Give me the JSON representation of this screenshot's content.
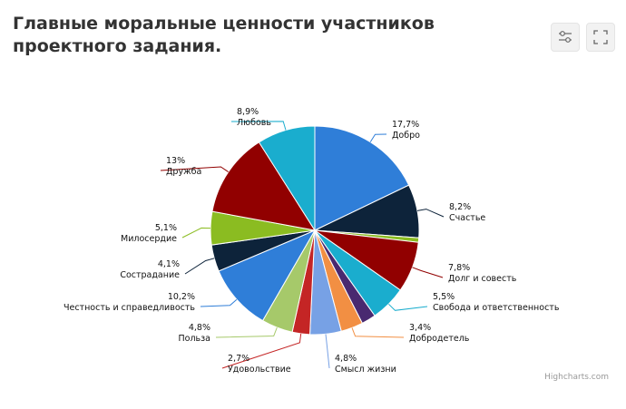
{
  "title": "Главные моральные ценности участников проектного задания.",
  "credits": "Highcharts.com",
  "toolbar": {
    "filter_icon": "sliders-icon",
    "expand_icon": "fullscreen-icon"
  },
  "chart_data": {
    "type": "pie",
    "title": "Главные моральные ценности участников проектного задания.",
    "start_angle_deg": 0,
    "slices": [
      {
        "name": "Добро",
        "value": 17.7,
        "label": "17,7%",
        "color": "#2f7ed8",
        "labeled": true
      },
      {
        "name": "Счастье",
        "value": 8.2,
        "label": "8,2%",
        "color": "#0d233a",
        "labeled": true
      },
      {
        "name": "",
        "value": 0.7,
        "label": "",
        "color": "#8bbc21",
        "labeled": false
      },
      {
        "name": "Долг и совесть",
        "value": 7.8,
        "label": "7,8%",
        "color": "#910000",
        "labeled": true
      },
      {
        "name": "Свобода и ответственность",
        "value": 5.5,
        "label": "5,5%",
        "color": "#1aadce",
        "labeled": true
      },
      {
        "name": "",
        "value": 2.2,
        "label": "",
        "color": "#492970",
        "labeled": false
      },
      {
        "name": "Добродетель",
        "value": 3.4,
        "label": "3,4%",
        "color": "#f28f43",
        "labeled": true
      },
      {
        "name": "Смысл жизни",
        "value": 4.8,
        "label": "4,8%",
        "color": "#77a1e5",
        "labeled": true
      },
      {
        "name": "Удовольствие",
        "value": 2.7,
        "label": "2,7%",
        "color": "#c42525",
        "labeled": true
      },
      {
        "name": "Польза",
        "value": 4.8,
        "label": "4,8%",
        "color": "#a6c96a",
        "labeled": true
      },
      {
        "name": "Честность и справедливость",
        "value": 10.2,
        "label": "10,2%",
        "color": "#2f7ed8",
        "labeled": true
      },
      {
        "name": "Сострадание",
        "value": 4.1,
        "label": "4,1%",
        "color": "#0d233a",
        "labeled": true
      },
      {
        "name": "Милосердие",
        "value": 5.1,
        "label": "5,1%",
        "color": "#8bbc21",
        "labeled": true
      },
      {
        "name": "Дружба",
        "value": 13,
        "label": "13%",
        "color": "#910000",
        "labeled": true
      },
      {
        "name": "Любовь",
        "value": 8.9,
        "label": "8,9%",
        "color": "#1aadce",
        "labeled": true
      }
    ]
  }
}
